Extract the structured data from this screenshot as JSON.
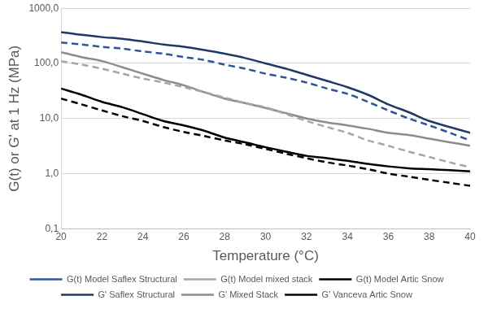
{
  "chart_data": {
    "type": "line",
    "x_label": "Temperature (°C)",
    "y_label": "G(t) or G' at 1 Hz (MPa)",
    "x": [
      20,
      21,
      22,
      23,
      24,
      25,
      26,
      27,
      28,
      29,
      30,
      31,
      32,
      33,
      34,
      35,
      36,
      37,
      38,
      39,
      40
    ],
    "xlim": [
      20,
      40
    ],
    "xticks": [
      20,
      22,
      24,
      26,
      28,
      30,
      32,
      34,
      36,
      38,
      40
    ],
    "ylim": [
      0.1,
      1000
    ],
    "yticks": [
      {
        "value": 0.1,
        "label": "0,1"
      },
      {
        "value": 1,
        "label": "1,0"
      },
      {
        "value": 10,
        "label": "10,0"
      },
      {
        "value": 100,
        "label": "100,0"
      },
      {
        "value": 1000,
        "label": "1000,0"
      }
    ],
    "log": "y",
    "grid": true,
    "legend": "bottom",
    "marker": "none",
    "series": [
      {
        "name": "G(t) Model Saflex Structural",
        "color": "#2f5597",
        "line_style": "dashed",
        "values": [
          240,
          220,
          200,
          185,
          165,
          150,
          130,
          115,
          95,
          80,
          65,
          55,
          45,
          35,
          28,
          20,
          14,
          10,
          7.5,
          5.5,
          4.0
        ]
      },
      {
        "name": "G(t) Model mixed stack",
        "color": "#a6a6a6",
        "line_style": "dashed",
        "values": [
          110,
          95,
          80,
          65,
          53,
          45,
          37,
          30,
          24,
          19,
          16,
          12,
          9,
          7,
          5.5,
          4,
          3.2,
          2.5,
          2,
          1.6,
          1.3
        ]
      },
      {
        "name": "G(t) Model Artic Snow",
        "color": "#000000",
        "line_style": "dashed",
        "values": [
          23,
          18,
          14,
          11,
          9,
          7,
          5.7,
          4.8,
          4.0,
          3.4,
          2.8,
          2.3,
          1.9,
          1.6,
          1.4,
          1.2,
          1.0,
          0.88,
          0.77,
          0.68,
          0.6
        ]
      },
      {
        "name": "G' Saflex Structural",
        "color": "#203864",
        "line_style": "solid",
        "values": [
          370,
          330,
          300,
          280,
          250,
          220,
          200,
          175,
          150,
          125,
          100,
          80,
          62,
          48,
          37,
          27,
          18,
          13,
          9,
          7,
          5.5
        ]
      },
      {
        "name": "G' Mixed Stack",
        "color": "#8c8c8c",
        "line_style": "solid",
        "values": [
          160,
          130,
          110,
          85,
          65,
          50,
          40,
          30,
          23,
          19,
          15.5,
          12.5,
          10,
          8.5,
          7.5,
          6.5,
          5.5,
          5,
          4.3,
          3.7,
          3.2
        ]
      },
      {
        "name": "G' Vanceva Artic Snow",
        "color": "#000000",
        "line_style": "solid",
        "values": [
          35,
          27,
          20,
          16,
          12,
          9,
          7.5,
          6,
          4.5,
          3.7,
          3.0,
          2.5,
          2.1,
          1.9,
          1.7,
          1.5,
          1.35,
          1.25,
          1.2,
          1.15,
          1.1
        ]
      }
    ]
  }
}
